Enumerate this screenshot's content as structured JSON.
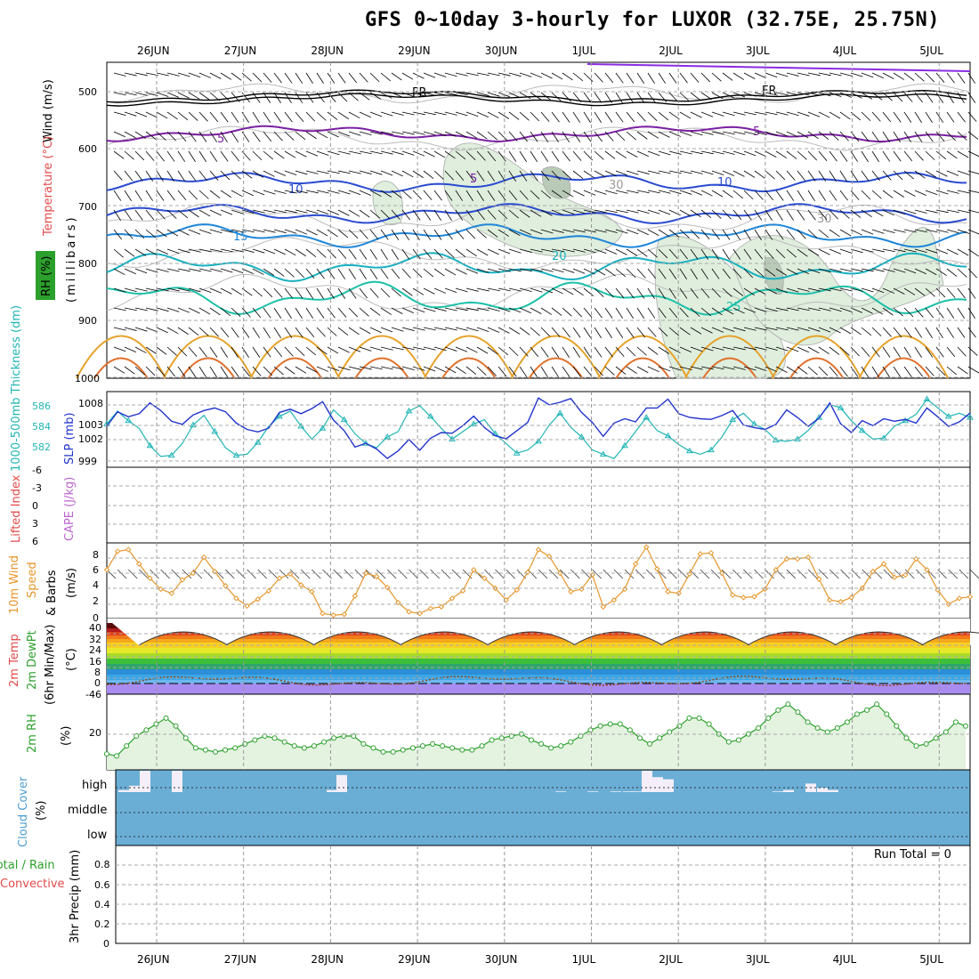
{
  "title": "GFS 0~10day 3-hourly for LUXOR (32.75E, 25.75N)",
  "colors": {
    "wind": "#000000",
    "temperature": "#e24a4a",
    "rh": "#2ca02c",
    "thickness": "#22b5b5",
    "slp": "#2233cc",
    "lifted_index": "#e24a4a",
    "cape": "#bb66cc",
    "wind10": "#e6962a",
    "temp2m": "#e24a4a",
    "dewpt": "#2ca02c",
    "rh2m": "#2ca02c",
    "cloud": "#4c9dd0",
    "precip_total": "#2ca02c",
    "precip_conv": "#e24a4a"
  },
  "x_axis": {
    "labels": [
      "26JUN",
      "27JUN",
      "28JUN",
      "29JUN",
      "30JUN",
      "1JUL",
      "2JUL",
      "3JUL",
      "4JUL",
      "5JUL"
    ]
  },
  "panels": {
    "upper": {
      "ylabel_wind": "Wind (m/s)",
      "ylabel_temp": "Temperature (°C)",
      "ylabel_rh": "RH (%)",
      "ylabel_mb": "(millibars)",
      "ticks": [
        "500",
        "600",
        "700",
        "800",
        "900",
        "1000"
      ],
      "contour_labels": [
        "FR",
        "FR",
        "5",
        "5",
        "5",
        "10",
        "10",
        "15",
        "20",
        "25",
        "30",
        "30"
      ]
    },
    "pressure": {
      "ylabel_left": "1000-500mb Thickness (dm)",
      "ylabel_right": "SLP (mb)",
      "ticks_left": [
        "586",
        "584",
        "582"
      ],
      "ticks_right": [
        "1008",
        "1003",
        "1002",
        "999"
      ]
    },
    "stability": {
      "ylabel_left": "Lifted Index",
      "ylabel_right": "CAPE (J/kg)",
      "ticks": [
        "-6",
        "-3",
        "0",
        "3",
        "6"
      ]
    },
    "wind10": {
      "ylabel_a": "10m Wind",
      "ylabel_b": "Speed",
      "ylabel_c": "& Barbs",
      "ylabel_unit": "(m/s)",
      "ticks": [
        "8",
        "6",
        "4",
        "2",
        "0"
      ]
    },
    "temp2m": {
      "ylabel_a": "2m Temp",
      "ylabel_b": "2m DewPt",
      "ylabel_c": "(6hr Min/Max)",
      "ylabel_unit": "(°C)",
      "ticks": [
        "40",
        "32",
        "24",
        "16",
        "8",
        "0",
        "-46"
      ]
    },
    "rh2m": {
      "ylabel": "2m RH",
      "ylabel_unit": "(%)",
      "ticks": [
        "20"
      ]
    },
    "cloud": {
      "ylabel": "Cloud Cover",
      "ylabel_unit": "(%)",
      "rows": [
        "high",
        "middle",
        "low"
      ]
    },
    "precip": {
      "ylabel_a": "Total / Rain",
      "ylabel_b": "Convective",
      "ylabel_c": "3hr Precip (mm)",
      "run_total": "Run Total = 0",
      "ticks": [
        "0.8",
        "0.6",
        "0.4",
        "0.2",
        "0"
      ]
    }
  },
  "chart_data": [
    {
      "type": "line",
      "title": "1000-500mb Thickness (dm) / SLP (mb)",
      "series": [
        {
          "name": "SLP (mb)",
          "values": [
            1004.5,
            1006.8,
            1006.0,
            1006.5,
            1008.2,
            1007.0,
            1005.3,
            1004.8,
            1006.3,
            1007.0,
            1007.4,
            1006.8,
            1005.0,
            1004.0,
            1003.6,
            1004.2,
            1006.7,
            1007.2,
            1006.5,
            1007.3,
            1008.4,
            1005.5,
            1003.8,
            1001.2,
            1001.8,
            1000.9,
            999.4,
            1000.6,
            1002.4,
            1000.7,
            1002.6,
            1003.5,
            1003.4,
            1004.6,
            1006.1,
            1004.3,
            1003.0,
            1002.5,
            1003.8,
            1005.1,
            1009.0,
            1007.9,
            1008.3,
            1008.9,
            1006.7,
            1005.1,
            1002.9,
            1005.0,
            1005.7,
            1005.2,
            1007.4,
            1007.4,
            1008.8,
            1006.5,
            1005.9,
            1005.7,
            1005.6,
            1006.2,
            1007.0,
            1004.7,
            1004.3,
            1004.0,
            1004.8,
            1007.1,
            1005.9,
            1004.5,
            1005.8,
            1008.2,
            1004.9,
            1003.5,
            1005.4,
            1004.6,
            1005.7,
            1005.3,
            1005.6,
            1005.0,
            1007.4,
            1006.0,
            1004.5,
            1005.2,
            1006.6
          ]
        },
        {
          "name": "1000-500mb Thickness (dm)",
          "values": [
            584.0,
            585.2,
            584.3,
            583.6,
            582.0,
            581.0,
            581.1,
            582.2,
            583.9,
            584.8,
            583.3,
            581.8,
            581.1,
            581.2,
            582.3,
            583.8,
            584.7,
            585.2,
            583.8,
            582.6,
            583.6,
            585.3,
            584.4,
            583.1,
            582.2,
            581.8,
            582.8,
            583.3,
            585.2,
            585.7,
            584.7,
            583.6,
            582.6,
            583.3,
            584.0,
            584.4,
            583.1,
            582.2,
            581.3,
            581.6,
            582.4,
            583.9,
            585.0,
            583.7,
            582.8,
            581.6,
            581.2,
            580.8,
            582.0,
            583.3,
            584.6,
            583.4,
            582.9,
            582.1,
            581.5,
            581.2,
            581.6,
            582.8,
            584.4,
            585.0,
            584.0,
            583.5,
            582.5,
            582.4,
            582.6,
            583.4,
            584.6,
            585.8,
            585.5,
            584.3,
            583.4,
            582.6,
            582.7,
            583.8,
            584.3,
            584.9,
            586.3,
            585.5,
            584.7,
            585.0,
            584.6
          ]
        }
      ]
    },
    {
      "type": "line",
      "title": "10m Wind Speed (m/s)",
      "series": [
        {
          "name": "10m Wind Speed",
          "values": [
            5.8,
            8.0,
            8.2,
            6.5,
            4.8,
            3.5,
            3.0,
            4.6,
            5.4,
            7.3,
            5.6,
            3.9,
            2.4,
            1.5,
            2.3,
            3.3,
            4.8,
            5.3,
            4.0,
            3.2,
            0.6,
            0.4,
            0.5,
            2.7,
            5.4,
            5.0,
            3.7,
            1.9,
            0.8,
            0.6,
            1.2,
            1.4,
            2.4,
            3.3,
            5.8,
            4.8,
            3.6,
            2.2,
            3.4,
            5.5,
            8.2,
            7.4,
            5.4,
            3.2,
            3.5,
            5.2,
            1.4,
            2.2,
            3.5,
            6.5,
            8.5,
            5.9,
            3.2,
            3.0,
            5.3,
            7.7,
            7.8,
            5.4,
            2.8,
            2.5,
            2.6,
            3.5,
            5.8,
            7.1,
            7.1,
            7.3,
            4.7,
            2.2,
            2.0,
            2.5,
            3.6,
            5.6,
            6.5,
            4.9,
            5.2,
            7.1,
            5.8,
            3.4,
            1.7,
            2.4,
            2.6
          ]
        }
      ]
    },
    {
      "type": "area",
      "title": "2m RH (%)",
      "series": [
        {
          "name": "2m RH",
          "values": [
            8,
            7,
            12,
            17,
            20,
            23,
            26,
            22,
            16,
            11,
            10,
            9,
            10,
            11,
            13,
            15,
            17,
            16,
            14,
            12,
            11,
            12,
            14,
            16,
            17,
            17,
            13,
            11,
            9,
            9,
            10,
            11,
            12,
            13,
            12,
            11,
            10,
            10,
            12,
            15,
            16,
            17,
            18,
            15,
            13,
            11,
            12,
            14,
            17,
            20,
            22,
            23,
            23,
            20,
            16,
            13,
            16,
            19,
            22,
            26,
            26,
            23,
            18,
            14,
            15,
            18,
            21,
            26,
            30,
            33,
            29,
            24,
            21,
            19,
            21,
            24,
            28,
            30,
            33,
            28,
            22,
            16,
            12,
            13,
            16,
            19,
            24,
            22
          ]
        }
      ]
    },
    {
      "type": "bar",
      "title": "Cloud Cover (%) high",
      "categories": [
        "25JUN18",
        "26JUN00",
        "26JUN03",
        "26JUN06",
        "26JUN09",
        "28JUN00",
        "28JUN03",
        "30JUN18",
        "1JUL00",
        "1JUL06",
        "1JUL12",
        "1JUL18",
        "2JUL00",
        "2JUL03",
        "2JUL06",
        "3JUL06",
        "3JUL15",
        "3JUL18",
        "3JUL21",
        "4JUL00"
      ],
      "series": [
        {
          "name": "high",
          "values": [
            10,
            30,
            100,
            0,
            100,
            10,
            80,
            3,
            3,
            3,
            3,
            3,
            100,
            70,
            60,
            3,
            10,
            40,
            20,
            10
          ]
        }
      ]
    },
    {
      "type": "bar",
      "title": "3hr Precip (mm)",
      "categories": [
        "26JUN",
        "27JUN",
        "28JUN",
        "29JUN",
        "30JUN",
        "1JUL",
        "2JUL",
        "3JUL",
        "4JUL",
        "5JUL"
      ],
      "series": [
        {
          "name": "Total / Rain",
          "values": [
            0,
            0,
            0,
            0,
            0,
            0,
            0,
            0,
            0,
            0
          ]
        }
      ],
      "ylim": [
        0,
        0.9
      ]
    }
  ]
}
